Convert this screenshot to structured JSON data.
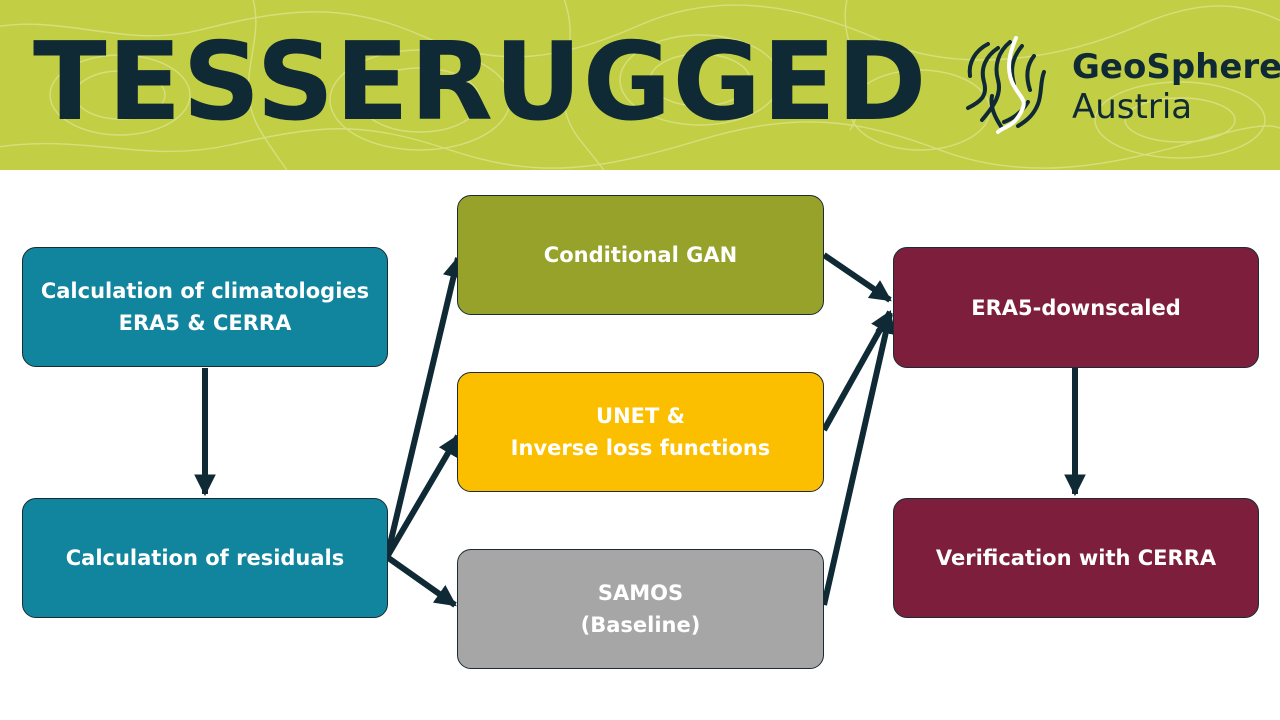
{
  "header": {
    "title": "TESSERUGGED",
    "logo": {
      "name_line1": "GeoSphere",
      "name_line2": "Austria",
      "icon": "geosphere-logo-icon"
    }
  },
  "colors": {
    "banner": "#c2cf45",
    "title_text": "#0f2a35",
    "teal": "#11849e",
    "olive": "#96a22a",
    "yellow": "#fcbf00",
    "gray": "#a6a6a6",
    "maroon": "#7d1e3c",
    "arrow": "#0f2a35"
  },
  "flow": {
    "climatologies": {
      "line1": "Calculation of climatologies",
      "line2": "ERA5 & CERRA"
    },
    "residuals": {
      "label": "Calculation of  residuals"
    },
    "gan": {
      "label": "Conditional GAN"
    },
    "unet": {
      "line1": "UNET &",
      "line2": "Inverse loss functions"
    },
    "samos": {
      "line1": "SAMOS",
      "line2": "(Baseline)"
    },
    "downscaled": {
      "label": "ERA5-downscaled"
    },
    "verification": {
      "label": "Verification with CERRA"
    }
  }
}
